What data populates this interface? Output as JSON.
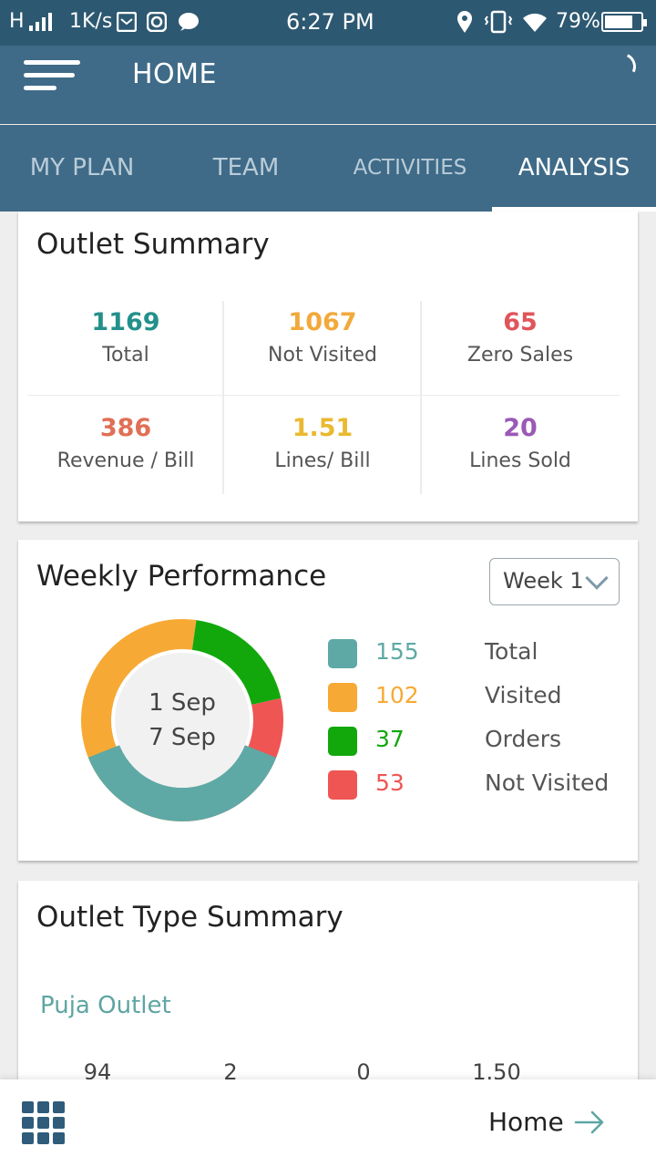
{
  "status_bar": {
    "network": "H",
    "speed": "1K/s",
    "time": "6:27 PM",
    "battery": "79%",
    "battery_level": 0.79,
    "icons": [
      "signal-icon",
      "mail-icon",
      "instagram-icon",
      "chat-icon",
      "location-icon",
      "vibrate-icon",
      "wifi-icon",
      "battery-icon"
    ]
  },
  "app_bar": {
    "title": "HOME",
    "icons": [
      "hamburger-menu-icon",
      "refresh-spinner-icon"
    ]
  },
  "tabs": [
    {
      "label": "MY PLAN",
      "active": false
    },
    {
      "label": "TEAM",
      "active": false
    },
    {
      "label": "ACTIVITIES",
      "active": false
    },
    {
      "label": "ANALYSIS",
      "active": true
    }
  ],
  "outlet_summary": {
    "title": "Outlet Summary",
    "stats": [
      {
        "value": "1169",
        "label": "Total",
        "color": "#23908b"
      },
      {
        "value": "1067",
        "label": "Not Visited",
        "color": "#f2a93b"
      },
      {
        "value": "65",
        "label": "Zero Sales",
        "color": "#e0555a"
      },
      {
        "value": "386",
        "label": "Revenue / Bill",
        "color": "#e06f55"
      },
      {
        "value": "1.51",
        "label": "Lines/ Bill",
        "color": "#eab92f"
      },
      {
        "value": "20",
        "label": "Lines Sold",
        "color": "#9b59b6"
      }
    ]
  },
  "weekly_performance": {
    "title": "Weekly Performance",
    "week_select": {
      "selected": "Week 1"
    },
    "center_line1": "1 Sep",
    "center_line2": "7 Sep",
    "legend": [
      {
        "value": "155",
        "label": "Total",
        "color": "#5ea9a5"
      },
      {
        "value": "102",
        "label": "Visited",
        "color": "#f7a935"
      },
      {
        "value": "37",
        "label": "Orders",
        "color": "#12a80c"
      },
      {
        "value": "53",
        "label": "Not Visited",
        "color": "#ef5553"
      }
    ]
  },
  "outlet_type_summary": {
    "title": "Outlet Type Summary",
    "type_name": "Puja Outlet",
    "values": [
      "94",
      "2",
      "0",
      "1.50"
    ]
  },
  "bottom_bar": {
    "home_label": "Home",
    "icons": [
      "grid-menu-icon",
      "arrow-right-icon"
    ]
  },
  "colors": {
    "primary": "#3f6b88",
    "status_bar": "#2d5871",
    "accent": "#5ea5a3"
  }
}
